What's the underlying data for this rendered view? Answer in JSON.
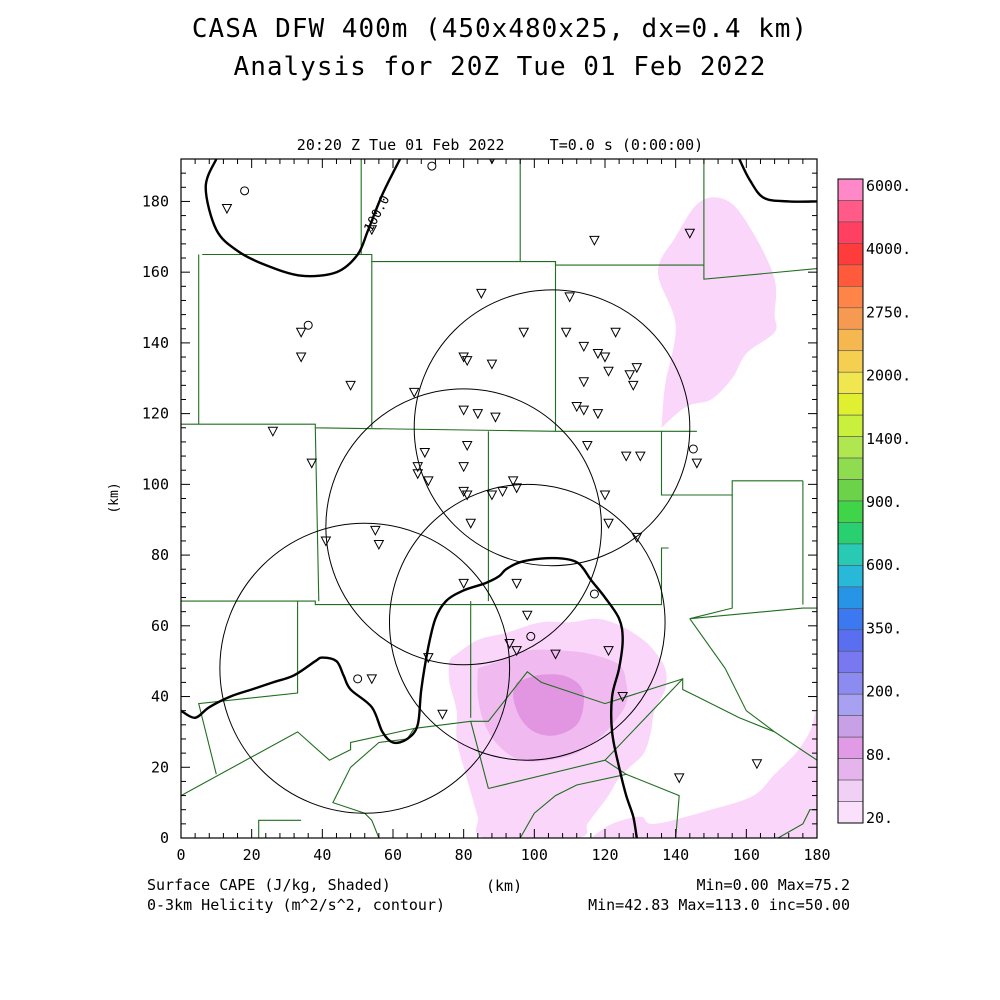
{
  "title": {
    "line1": "CASA DFW 400m (450x480x25, dx=0.4 km)",
    "line2": "Analysis for 20Z Tue 01 Feb 2022"
  },
  "valid_time": "20:20 Z Tue 01 Feb 2022     T=0.0 s (0:00:00)",
  "axes": {
    "x_label": "(km)",
    "y_label": "(km)",
    "x_range": [
      0,
      180
    ],
    "y_range": [
      0,
      192
    ],
    "x_ticks": [
      "0",
      "20",
      "40",
      "60",
      "80",
      "100",
      "120",
      "140",
      "160",
      "180"
    ],
    "y_ticks": [
      "0",
      "20",
      "40",
      "60",
      "80",
      "100",
      "120",
      "140",
      "160",
      "180"
    ]
  },
  "footer": {
    "left1": "Surface CAPE (J/kg, Shaded)",
    "left2": "0-3km Helicity (m^2/s^2, contour)",
    "right1": "Min=0.00 Max=75.2",
    "right2": "Min=42.83 Max=113.0 inc=50.00"
  },
  "contour_label": "100.0",
  "colorbar": {
    "labels": [
      "6000.",
      "4000.",
      "2750.",
      "2000.",
      "1400.",
      "900.",
      "600.",
      "350.",
      "200.",
      "80.",
      "20."
    ],
    "colors": [
      "#ff88c8",
      "#ff5a88",
      "#ff4060",
      "#ff3c3c",
      "#ff5a3c",
      "#ff8448",
      "#f59a50",
      "#f5b850",
      "#f5d050",
      "#f0e650",
      "#e0f030",
      "#c8f03c",
      "#b0e650",
      "#90dc50",
      "#6cd24a",
      "#40d448",
      "#28d070",
      "#28cab4",
      "#28b8d8",
      "#2894e6",
      "#3c78f0",
      "#5a6ef0",
      "#7878f0",
      "#8c8cf0",
      "#a8a0f0",
      "#c8a0e6",
      "#e09ae6",
      "#e6b4ec",
      "#f0d0f4",
      "#fae0fa"
    ]
  },
  "cape_colors": {
    "low": "#fad6fa",
    "mid": "#f0baf0",
    "high": "#e296e2"
  },
  "county_line_color": "#1f6e1f",
  "chart_data": {
    "type": "heatmap",
    "field": "Surface CAPE (J/kg)",
    "min": 0.0,
    "max": 75.2,
    "contour_field": "0-3km Helicity (m^2/s^2)",
    "contour_min": 42.83,
    "contour_max": 113.0,
    "contour_inc": 50.0,
    "radar_circles": [
      {
        "x": 105,
        "y": 116,
        "r": 39
      },
      {
        "x": 80,
        "y": 88,
        "r": 39
      },
      {
        "x": 98,
        "y": 61,
        "r": 39
      },
      {
        "x": 52,
        "y": 48,
        "r": 41
      }
    ],
    "stations_triangle": [
      [
        13,
        178
      ],
      [
        54,
        172
      ],
      [
        88,
        192
      ],
      [
        117,
        169
      ],
      [
        144,
        171
      ],
      [
        110,
        153
      ],
      [
        85,
        154
      ],
      [
        109,
        143
      ],
      [
        97,
        143
      ],
      [
        123,
        143
      ],
      [
        34,
        143
      ],
      [
        34,
        136
      ],
      [
        80,
        136
      ],
      [
        81,
        135
      ],
      [
        88,
        134
      ],
      [
        114,
        139
      ],
      [
        118,
        137
      ],
      [
        120,
        136
      ],
      [
        121,
        132
      ],
      [
        127,
        131
      ],
      [
        129,
        133
      ],
      [
        128,
        128
      ],
      [
        114,
        129
      ],
      [
        48,
        128
      ],
      [
        66,
        126
      ],
      [
        80,
        121
      ],
      [
        84,
        120
      ],
      [
        89,
        119
      ],
      [
        112,
        122
      ],
      [
        114,
        121
      ],
      [
        118,
        120
      ],
      [
        26,
        115
      ],
      [
        37,
        106
      ],
      [
        69,
        109
      ],
      [
        81,
        111
      ],
      [
        115,
        111
      ],
      [
        80,
        105
      ],
      [
        126,
        108
      ],
      [
        130,
        108
      ],
      [
        146,
        106
      ],
      [
        67,
        105
      ],
      [
        67,
        103
      ],
      [
        70,
        101
      ],
      [
        94,
        101
      ],
      [
        95,
        99
      ],
      [
        91,
        98
      ],
      [
        88,
        97
      ],
      [
        80,
        98
      ],
      [
        81,
        97
      ],
      [
        120,
        97
      ],
      [
        82,
        89
      ],
      [
        121,
        89
      ],
      [
        129,
        85
      ],
      [
        55,
        87
      ],
      [
        56,
        83
      ],
      [
        41,
        84
      ],
      [
        80,
        72
      ],
      [
        95,
        72
      ],
      [
        98,
        63
      ],
      [
        93,
        55
      ],
      [
        95,
        53
      ],
      [
        106,
        52
      ],
      [
        121,
        53
      ],
      [
        70,
        51
      ],
      [
        54,
        45
      ],
      [
        125,
        40
      ],
      [
        74,
        35
      ],
      [
        141,
        17
      ],
      [
        163,
        21
      ]
    ],
    "stations_circle": [
      [
        18,
        183
      ],
      [
        36,
        145
      ],
      [
        71,
        190
      ],
      [
        145,
        110
      ],
      [
        50,
        45
      ],
      [
        99,
        57
      ],
      [
        117,
        69
      ]
    ]
  }
}
